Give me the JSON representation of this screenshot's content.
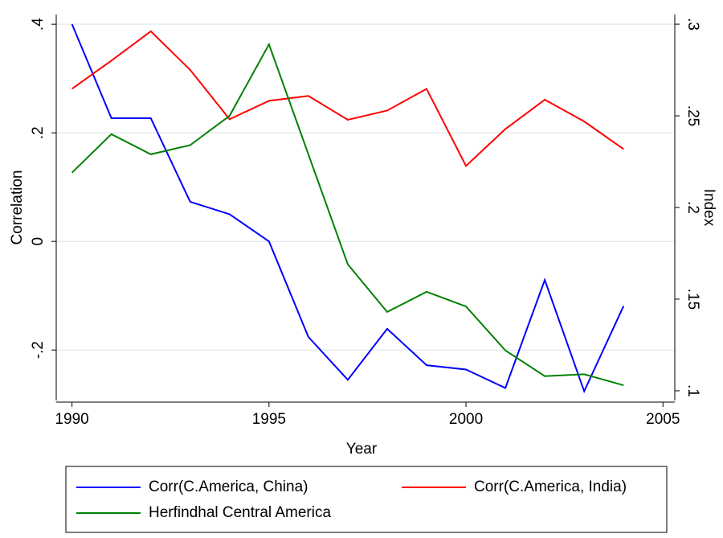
{
  "chart_data": {
    "type": "line",
    "x_label": "Year",
    "y_label": "Correlation",
    "y2_label": "Index",
    "x": [
      1990,
      1991,
      1992,
      1993,
      1994,
      1995,
      1996,
      1997,
      1998,
      1999,
      2000,
      2001,
      2002,
      2003,
      2004
    ],
    "series": [
      {
        "name": "Corr(C.America, China)",
        "color": "#0000ff",
        "axis": "y",
        "values": [
          0.4,
          0.227,
          0.227,
          0.073,
          0.05,
          0,
          -0.176,
          -0.255,
          -0.161,
          -0.228,
          -0.236,
          -0.27,
          -0.071,
          -0.276,
          -0.119
        ]
      },
      {
        "name": "Corr(C.America, India)",
        "color": "#ff0000",
        "axis": "y",
        "values": [
          0.281,
          0.333,
          0.387,
          0.316,
          0.225,
          0.259,
          0.268,
          0.224,
          0.241,
          0.281,
          0.139,
          0.207,
          0.261,
          0.221,
          0.17
        ]
      },
      {
        "name": "Herfindhal Central America",
        "color": "#008000",
        "axis": "y2",
        "values": [
          0.219,
          0.24,
          0.229,
          0.234,
          0.25,
          0.289,
          0.229,
          0.169,
          0.143,
          0.154,
          0.146,
          0.122,
          0.108,
          0.109,
          0.103
        ]
      }
    ],
    "xlim": [
      1989.6,
      2005.3
    ],
    "xticks": [
      1990,
      1995,
      2000,
      2005
    ],
    "ylim": [
      -0.293,
      0.418
    ],
    "yticks": [
      {
        "value": -0.2,
        "label": "-.2"
      },
      0,
      {
        "value": 0.2,
        "label": ".2"
      },
      {
        "value": 0.4,
        "label": ".4"
      }
    ],
    "y2lim": [
      0.0947,
      0.3053
    ],
    "y2ticks": [
      {
        "value": 0.1,
        "label": ".1"
      },
      {
        "value": 0.15,
        "label": ".15"
      },
      {
        "value": 0.2,
        "label": ".2"
      },
      {
        "value": 0.25,
        "label": ".25"
      },
      {
        "value": 0.3,
        "label": ".3"
      }
    ],
    "grid": true
  }
}
